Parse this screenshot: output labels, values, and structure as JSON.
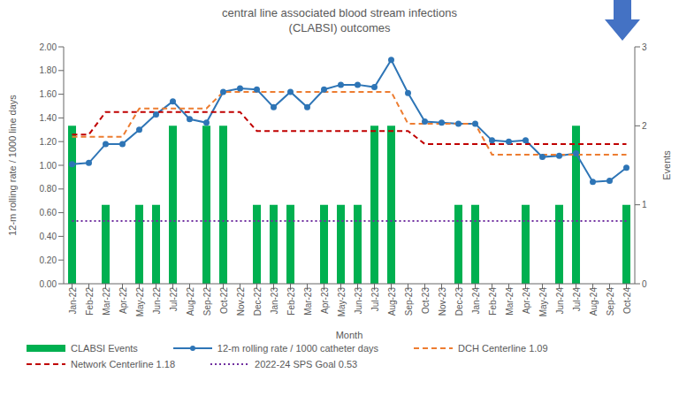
{
  "chart_data": {
    "type": "combo",
    "title": "central line associated blood stream infections\n(CLABSI) outcomes",
    "x_label": "Month",
    "y_label": "12-m rolling rate / 1000 line days",
    "y2_label": "Events",
    "categories": [
      "Jan-22",
      "Feb-22",
      "Mar-22",
      "Apr-22",
      "May-22",
      "Jun-22",
      "Jul-22",
      "Aug-22",
      "Sep-22",
      "Oct-22",
      "Nov-22",
      "Dec-22",
      "Jan-23",
      "Feb-23",
      "Mar-23",
      "Apr-23",
      "May-23",
      "Jun-23",
      "Jul-23",
      "Aug-23",
      "Sep-23",
      "Oct-23",
      "Nov-23",
      "Dec-23",
      "Jan-24",
      "Feb-24",
      "Mar-24",
      "Apr-24",
      "May-24",
      "Jun-24",
      "Jul-24",
      "Aug-24",
      "Sep-24",
      "Oct-24"
    ],
    "series": [
      {
        "name": "CLABSI Events",
        "type": "bar",
        "axis": "y2",
        "color": "#00b050",
        "values": [
          2,
          0,
          1,
          0,
          1,
          1,
          2,
          0,
          2,
          2,
          0,
          1,
          1,
          1,
          0,
          1,
          1,
          1,
          2,
          2,
          0,
          0,
          0,
          1,
          1,
          0,
          0,
          1,
          0,
          1,
          2,
          0,
          0,
          1
        ]
      },
      {
        "name": "12-m rolling rate / 1000 catheter days",
        "type": "line",
        "color": "#2e75b6",
        "marker": "circle",
        "line_style": "solid",
        "values": [
          1.01,
          1.02,
          1.18,
          1.18,
          1.3,
          1.43,
          1.54,
          1.39,
          1.36,
          1.62,
          1.65,
          1.64,
          1.49,
          1.62,
          1.49,
          1.64,
          1.68,
          1.68,
          1.66,
          1.89,
          1.61,
          1.37,
          1.36,
          1.35,
          1.35,
          1.21,
          1.2,
          1.21,
          1.07,
          1.08,
          1.1,
          0.86,
          0.87,
          0.98
        ]
      },
      {
        "name": "DCH Centerline 1.09",
        "type": "line",
        "color": "#ed7d31",
        "line_style": "dashed",
        "values": [
          1.24,
          1.24,
          1.24,
          1.24,
          1.48,
          1.48,
          1.48,
          1.48,
          1.48,
          1.62,
          1.62,
          1.62,
          1.62,
          1.62,
          1.62,
          1.62,
          1.62,
          1.62,
          1.62,
          1.62,
          1.35,
          1.35,
          1.35,
          1.35,
          1.35,
          1.09,
          1.09,
          1.09,
          1.09,
          1.09,
          1.09,
          1.09,
          1.09,
          1.09
        ]
      },
      {
        "name": "Network Centerline 1.18",
        "type": "line",
        "color": "#c00000",
        "line_style": "dashed",
        "values": [
          1.26,
          1.26,
          1.45,
          1.45,
          1.45,
          1.45,
          1.45,
          1.45,
          1.45,
          1.45,
          1.45,
          1.29,
          1.29,
          1.29,
          1.29,
          1.29,
          1.29,
          1.29,
          1.29,
          1.29,
          1.29,
          1.18,
          1.18,
          1.18,
          1.18,
          1.18,
          1.18,
          1.18,
          1.18,
          1.18,
          1.18,
          1.18,
          1.18,
          1.18
        ]
      },
      {
        "name": "2022-24 SPS Goal 0.53",
        "type": "line",
        "color": "#7030a0",
        "line_style": "dotted",
        "values": [
          0.53,
          0.53,
          0.53,
          0.53,
          0.53,
          0.53,
          0.53,
          0.53,
          0.53,
          0.53,
          0.53,
          0.53,
          0.53,
          0.53,
          0.53,
          0.53,
          0.53,
          0.53,
          0.53,
          0.53,
          0.53,
          0.53,
          0.53,
          0.53,
          0.53,
          0.53,
          0.53,
          0.53,
          0.53,
          0.53,
          0.53,
          0.53,
          0.53,
          0.53
        ]
      }
    ],
    "ylim": [
      0,
      2
    ],
    "yticks": [
      {
        "value": 0,
        "label": "0.00"
      },
      {
        "value": 0.2,
        "label": "0.20"
      },
      {
        "value": 0.4,
        "label": "0.40"
      },
      {
        "value": 0.6,
        "label": "0.60"
      },
      {
        "value": 0.8,
        "label": "0.80"
      },
      {
        "value": 1,
        "label": "1.00"
      },
      {
        "value": 1.2,
        "label": "1.20"
      },
      {
        "value": 1.4,
        "label": "1.40"
      },
      {
        "value": 1.6,
        "label": "1.60"
      },
      {
        "value": 1.8,
        "label": "1.80"
      },
      {
        "value": 2,
        "label": "2.00"
      }
    ],
    "y2lim": [
      0,
      3
    ],
    "y2ticks": [
      0,
      1,
      2,
      3
    ],
    "grid": false,
    "legend": "bottom"
  }
}
